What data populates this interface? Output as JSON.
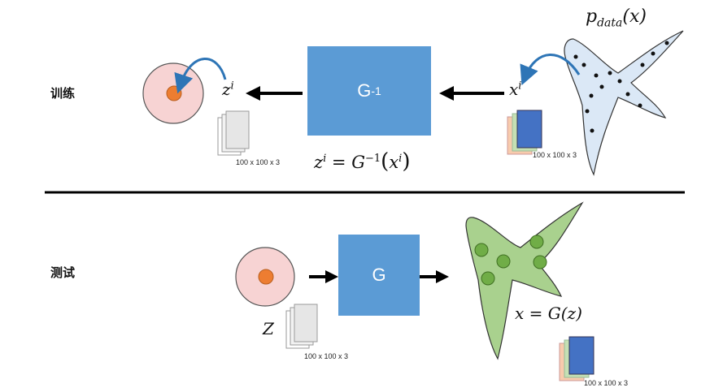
{
  "train": {
    "label": "训练",
    "box_main": "G",
    "box_sup": "-1",
    "z_base": "z",
    "z_sup": "i",
    "x_base": "x",
    "x_sup": "i",
    "pdata": "p",
    "pdata_sub": "data",
    "pdata_arg": "(x)",
    "equation": {
      "lhs_base": "z",
      "lhs_sup": "i",
      "eq": " = ",
      "g": "G",
      "g_sup": "−1",
      "arg_open": "(",
      "arg_base": "x",
      "arg_sup": "i",
      "arg_close": ")"
    },
    "dims_left": "100 x 100 x 3",
    "dims_right": "100 x 100 x 3"
  },
  "test": {
    "label": "测试",
    "box": "G",
    "z_label": "Z",
    "equation": "x = G(z)",
    "dims_left": "100 x 100 x 3",
    "dims_right": "100 x 100 x 3"
  },
  "colors": {
    "box": "#5b9bd5",
    "circle_fill": "#f7d3d3",
    "dot": "#ed7d31",
    "blob_train": "#dbe8f6",
    "blob_test": "#a9d18e",
    "green_dot": "#70ad47",
    "curved_arrow": "#2e75b6"
  }
}
